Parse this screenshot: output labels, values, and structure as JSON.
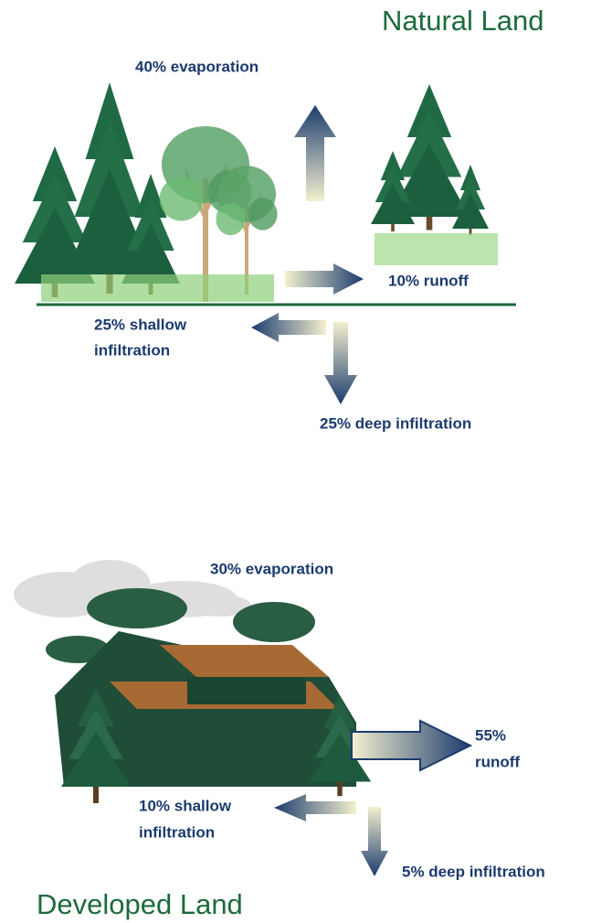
{
  "natural": {
    "title": "Natural Land",
    "evaporation": "40% evaporation",
    "runoff": "10% runoff",
    "shallow_infiltration": [
      "25% shallow",
      "infiltration"
    ],
    "deep_infiltration": "25% deep infiltration"
  },
  "developed": {
    "title": "Developed Land",
    "evaporation": "30% evaporation",
    "runoff": [
      "55%",
      "runoff"
    ],
    "shallow_infiltration": [
      "10% shallow",
      "infiltration"
    ],
    "deep_infiltration": "5% deep infiltration"
  }
}
